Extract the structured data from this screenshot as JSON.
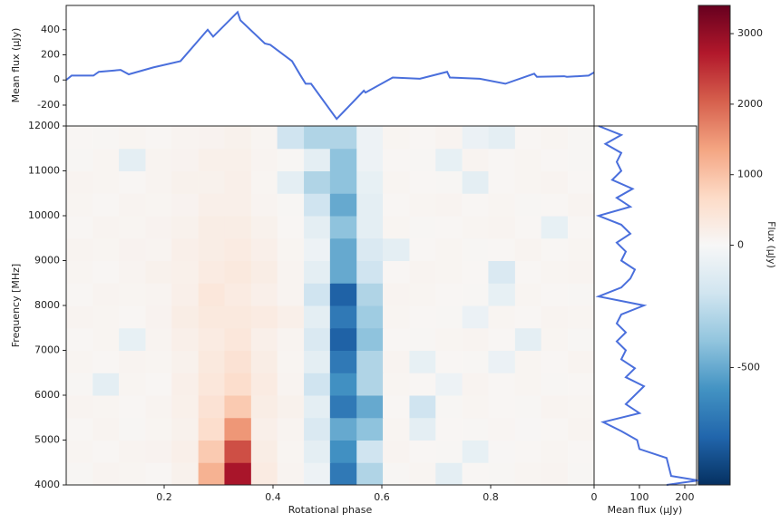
{
  "chart_data": [
    {
      "type": "line",
      "ylabel": "Mean flux (μJy)",
      "color": "#4a6fdc",
      "x": [
        0.02,
        0.03,
        0.07,
        0.08,
        0.12,
        0.135,
        0.18,
        0.23,
        0.28,
        0.29,
        0.335,
        0.34,
        0.385,
        0.395,
        0.435,
        0.45,
        0.46,
        0.47,
        0.517,
        0.567,
        0.57,
        0.62,
        0.67,
        0.72,
        0.725,
        0.78,
        0.827,
        0.88,
        0.885,
        0.935,
        0.94,
        0.98,
        0.99
      ],
      "values": [
        0,
        35,
        35,
        65,
        80,
        45,
        100,
        150,
        400,
        345,
        540,
        475,
        290,
        280,
        150,
        40,
        -30,
        -30,
        -310,
        -85,
        -100,
        20,
        10,
        65,
        20,
        10,
        -30,
        50,
        25,
        30,
        25,
        35,
        60
      ],
      "xlim": [
        0.02,
        0.99
      ],
      "ylim": [
        -366,
        593
      ],
      "yticks": [
        -200,
        0,
        200,
        400
      ]
    },
    {
      "type": "heatmap",
      "xlabel": "Rotational phase",
      "ylabel": "Frequency [MHz]",
      "x": [
        0.044,
        0.093,
        0.141,
        0.19,
        0.238,
        0.287,
        0.335,
        0.384,
        0.432,
        0.481,
        0.529,
        0.578,
        0.626,
        0.675,
        0.723,
        0.772,
        0.82,
        0.869,
        0.917,
        0.966
      ],
      "y": [
        4250,
        4750,
        5250,
        5750,
        6250,
        6750,
        7250,
        7750,
        8250,
        8750,
        9250,
        9750,
        10250,
        10750,
        11250,
        11750
      ],
      "z": [
        [
          50,
          100,
          80,
          60,
          150,
          1200,
          2800,
          300,
          100,
          -50,
          -700,
          -300,
          50,
          80,
          -100,
          60,
          50,
          80,
          100,
          50
        ],
        [
          80,
          60,
          100,
          120,
          200,
          900,
          2200,
          250,
          80,
          -100,
          -600,
          -200,
          100,
          60,
          50,
          -80,
          40,
          60,
          80,
          60
        ],
        [
          60,
          100,
          50,
          80,
          150,
          600,
          1500,
          200,
          100,
          -150,
          -500,
          -400,
          80,
          -100,
          60,
          50,
          70,
          40,
          60,
          100
        ],
        [
          100,
          80,
          60,
          100,
          180,
          500,
          900,
          250,
          150,
          -100,
          -700,
          -500,
          60,
          -200,
          50,
          80,
          60,
          50,
          100,
          80
        ],
        [
          50,
          -100,
          80,
          60,
          200,
          400,
          600,
          300,
          100,
          -200,
          -600,
          -300,
          80,
          60,
          -50,
          100,
          60,
          80,
          50,
          60
        ],
        [
          80,
          60,
          100,
          80,
          150,
          350,
          500,
          250,
          80,
          -100,
          -700,
          -300,
          100,
          -80,
          60,
          50,
          -60,
          80,
          60,
          100
        ],
        [
          60,
          80,
          -80,
          100,
          200,
          300,
          400,
          200,
          100,
          -150,
          -800,
          -400,
          60,
          50,
          80,
          100,
          60,
          -100,
          80,
          50
        ],
        [
          100,
          80,
          60,
          120,
          250,
          350,
          350,
          300,
          200,
          -100,
          -700,
          -350,
          80,
          60,
          50,
          -60,
          80,
          60,
          100,
          80
        ],
        [
          60,
          100,
          80,
          100,
          200,
          400,
          300,
          200,
          100,
          -200,
          -800,
          -300,
          100,
          80,
          60,
          50,
          -80,
          80,
          60,
          50
        ],
        [
          80,
          60,
          100,
          150,
          180,
          300,
          350,
          250,
          100,
          -100,
          -500,
          -200,
          60,
          100,
          80,
          60,
          -150,
          60,
          80,
          100
        ],
        [
          100,
          80,
          120,
          100,
          200,
          250,
          300,
          200,
          80,
          -50,
          -500,
          -150,
          -100,
          60,
          80,
          50,
          60,
          100,
          60,
          80
        ],
        [
          60,
          100,
          80,
          120,
          150,
          250,
          250,
          150,
          60,
          -100,
          -400,
          -100,
          80,
          50,
          60,
          80,
          100,
          60,
          -80,
          60
        ],
        [
          80,
          60,
          100,
          80,
          120,
          200,
          200,
          100,
          50,
          -200,
          -500,
          -100,
          60,
          80,
          100,
          60,
          80,
          50,
          60,
          100
        ],
        [
          100,
          80,
          60,
          100,
          150,
          150,
          200,
          80,
          -100,
          -300,
          -400,
          -80,
          80,
          60,
          50,
          -100,
          60,
          80,
          100,
          60
        ],
        [
          50,
          80,
          -100,
          100,
          120,
          180,
          180,
          100,
          50,
          -100,
          -400,
          -50,
          60,
          50,
          -80,
          100,
          60,
          80,
          60,
          50
        ],
        [
          60,
          50,
          80,
          60,
          100,
          120,
          150,
          80,
          -200,
          -300,
          -300,
          -50,
          80,
          60,
          100,
          -60,
          -100,
          60,
          80,
          50
        ]
      ],
      "xlim": [
        0.02,
        0.99
      ],
      "ylim": [
        4000,
        12000
      ],
      "xticks": [
        0.2,
        0.4,
        0.6,
        0.8
      ],
      "yticks": [
        4000,
        5000,
        6000,
        7000,
        8000,
        9000,
        10000,
        11000,
        12000
      ],
      "clim": [
        -980,
        3400
      ],
      "vcenter": 0,
      "colorbar_label": "Flux (μJy)",
      "cticks": [
        -500,
        0,
        1000,
        2000,
        3000
      ],
      "colormap": [
        "#053061",
        "#2166ac",
        "#4393c3",
        "#92c5de",
        "#d1e5f0",
        "#f7f7f7",
        "#fddbc7",
        "#f4a582",
        "#d6604d",
        "#b2182b",
        "#67001f"
      ]
    },
    {
      "type": "spectrum",
      "xlabel": "Mean flux (μJy)",
      "color": "#4a6fdc",
      "y": [
        4000,
        4100,
        4200,
        4400,
        4600,
        4800,
        5000,
        5200,
        5400,
        5600,
        5800,
        6000,
        6200,
        6400,
        6600,
        6800,
        7000,
        7200,
        7400,
        7600,
        7800,
        8000,
        8200,
        8400,
        8600,
        8800,
        9000,
        9200,
        9400,
        9600,
        9800,
        10000,
        10200,
        10400,
        10600,
        10800,
        11000,
        11200,
        11400,
        11600,
        11800,
        12000
      ],
      "values": [
        160,
        230,
        170,
        165,
        160,
        100,
        95,
        60,
        20,
        100,
        70,
        90,
        110,
        70,
        90,
        60,
        70,
        50,
        70,
        50,
        60,
        110,
        10,
        60,
        80,
        90,
        60,
        70,
        50,
        80,
        60,
        10,
        80,
        50,
        85,
        40,
        60,
        50,
        60,
        25,
        60,
        10
      ],
      "xlim": [
        0,
        226
      ],
      "ylim": [
        4000,
        12000
      ],
      "xticks": [
        0,
        100,
        200
      ]
    }
  ]
}
